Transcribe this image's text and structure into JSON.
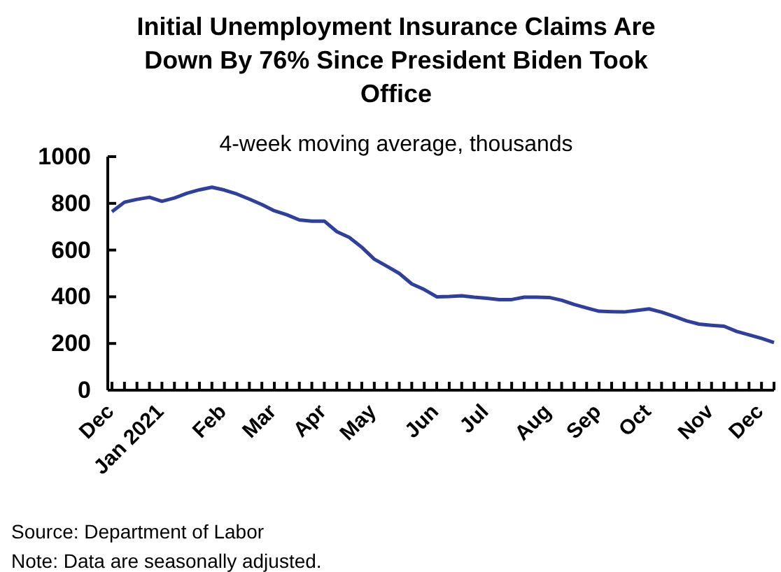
{
  "chart_data": {
    "type": "line",
    "title": "Initial Unemployment Insurance Claims Are Down By 76% Since President Biden Took Office",
    "subtitle": "4-week moving average, thousands",
    "categories": [
      "Dec",
      null,
      null,
      null,
      "Jan 2021",
      null,
      null,
      null,
      null,
      "Feb",
      null,
      null,
      null,
      "Mar",
      null,
      null,
      null,
      "Apr",
      null,
      null,
      null,
      "May",
      null,
      null,
      null,
      null,
      "Jun",
      null,
      null,
      null,
      "Jul",
      null,
      null,
      null,
      null,
      "Aug",
      null,
      null,
      null,
      "Sep",
      null,
      null,
      null,
      "Oct",
      null,
      null,
      null,
      null,
      "Nov",
      null,
      null,
      null,
      "Dec",
      null
    ],
    "series": [
      {
        "color": "#2e3f9e",
        "values": [
          764,
          805,
          817,
          826,
          809,
          823,
          843,
          858,
          869,
          857,
          840,
          818,
          795,
          768,
          751,
          729,
          724,
          724,
          679,
          654,
          612,
          561,
          531,
          500,
          455,
          431,
          400,
          401,
          404,
          398,
          394,
          388,
          388,
          398,
          398,
          397,
          385,
          367,
          352,
          338,
          336,
          335,
          341,
          348,
          334,
          316,
          297,
          283,
          278,
          274,
          252,
          237,
          222,
          204
        ]
      }
    ],
    "ylim": [
      0,
      1000
    ],
    "yticks": [
      0,
      200,
      400,
      600,
      800,
      1000
    ],
    "grid": false,
    "marker": "none",
    "line_style": "solid",
    "annotations": [
      "Source: Department of Labor",
      "Note: Data are seasonally adjusted."
    ]
  }
}
